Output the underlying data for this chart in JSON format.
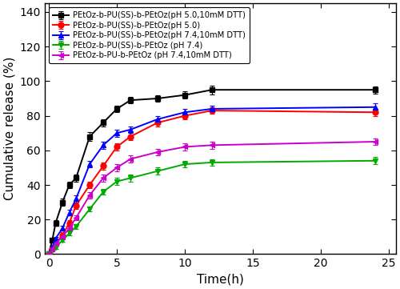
{
  "series": [
    {
      "label": "PEtOz-b-PU(SS)-b-PEtOz(pH 5.0,10mM DTT)",
      "color": "black",
      "marker": "s",
      "x": [
        0,
        0.25,
        0.5,
        1,
        1.5,
        2,
        3,
        4,
        5,
        6,
        8,
        10,
        12,
        24
      ],
      "y": [
        0,
        8,
        18,
        30,
        40,
        44,
        68,
        76,
        84,
        89,
        90,
        92,
        95,
        95
      ],
      "yerr": [
        0,
        1,
        1.5,
        2,
        2,
        2,
        2.5,
        2,
        2,
        2,
        2,
        2,
        2.5,
        2
      ]
    },
    {
      "label": "PEtOz-b-PU(SS)-b-PEtOz(pH 5.0)",
      "color": "red",
      "marker": "o",
      "x": [
        0,
        0.25,
        0.5,
        1,
        1.5,
        2,
        3,
        4,
        5,
        6,
        8,
        10,
        12,
        24
      ],
      "y": [
        0,
        3,
        6,
        11,
        18,
        28,
        40,
        51,
        62,
        68,
        76,
        80,
        83,
        82
      ],
      "yerr": [
        0,
        0.8,
        1,
        1.5,
        1.5,
        2,
        2,
        2,
        2,
        2,
        2,
        2,
        2,
        2
      ]
    },
    {
      "label": "PEtOz-b-PU(SS)-b-PEtOz(pH 7.4,10mM DTT)",
      "color": "blue",
      "marker": "^",
      "x": [
        0,
        0.25,
        0.5,
        1,
        1.5,
        2,
        3,
        4,
        5,
        6,
        8,
        10,
        12,
        24
      ],
      "y": [
        0,
        4,
        9,
        15,
        24,
        32,
        52,
        63,
        70,
        72,
        78,
        82,
        84,
        85
      ],
      "yerr": [
        0,
        0.8,
        1,
        1.5,
        1.5,
        2,
        2,
        2,
        2,
        2,
        2,
        2,
        2,
        2
      ]
    },
    {
      "label": "PEtOz-b-PU(SS)-b-PEtOz (pH 7.4)",
      "color": "#00aa00",
      "marker": "v",
      "x": [
        0,
        0.25,
        0.5,
        1,
        1.5,
        2,
        3,
        4,
        5,
        6,
        8,
        10,
        12,
        24
      ],
      "y": [
        0,
        2,
        4,
        8,
        12,
        16,
        26,
        36,
        42,
        44,
        48,
        52,
        53,
        54
      ],
      "yerr": [
        0,
        0.5,
        0.8,
        1,
        1,
        1.5,
        1.5,
        1.5,
        2,
        2,
        2,
        2,
        2,
        2
      ]
    },
    {
      "label": "PEtOz-b-PU-b-PEtOz (pH 7.4,10mM DTT)",
      "color": "#cc00cc",
      "marker": "<",
      "x": [
        0,
        0.25,
        0.5,
        1,
        1.5,
        2,
        3,
        4,
        5,
        6,
        8,
        10,
        12,
        24
      ],
      "y": [
        0,
        3,
        6,
        10,
        15,
        21,
        34,
        44,
        50,
        55,
        59,
        62,
        63,
        65
      ],
      "yerr": [
        0,
        0.5,
        0.8,
        1,
        1,
        1.5,
        2,
        2,
        2,
        2,
        2,
        2,
        2,
        2
      ]
    }
  ],
  "xlabel": "Time(h)",
  "ylabel": "Cumulative release (%)",
  "xlim": [
    -0.3,
    25.5
  ],
  "ylim": [
    0,
    145
  ],
  "yticks": [
    0,
    20,
    40,
    60,
    80,
    100,
    120,
    140
  ],
  "xticks": [
    0,
    5,
    10,
    15,
    20,
    25
  ],
  "legend_loc": "upper left",
  "legend_fontsize": 7.2,
  "axis_fontsize": 11,
  "tick_fontsize": 10,
  "linewidth": 1.4,
  "markersize": 5,
  "figsize": [
    5.0,
    3.61
  ],
  "dpi": 100
}
